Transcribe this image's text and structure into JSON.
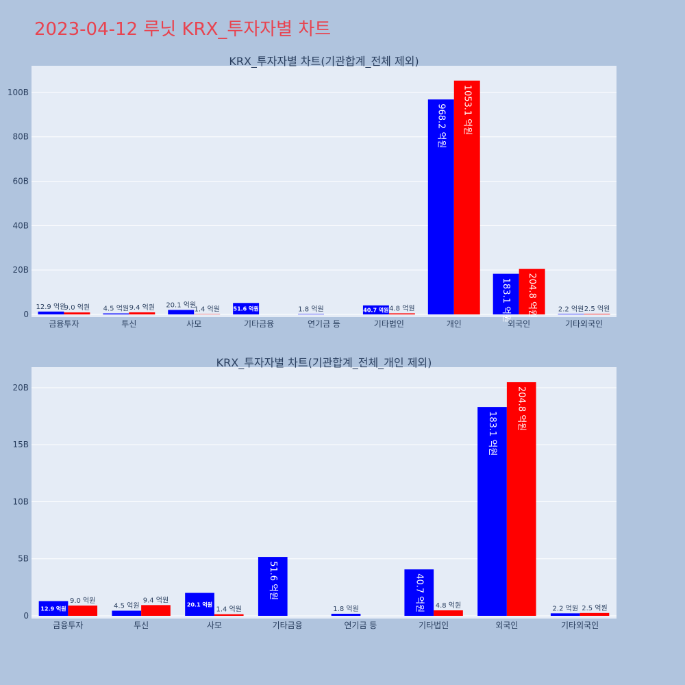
{
  "page": {
    "title": "2023-04-12 루닛 KRX_투자자별 차트"
  },
  "colors": {
    "background": "#b0c4de",
    "plot_bg": "#e5ecf6",
    "title": "#e8434f",
    "series_blue": "#0000ff",
    "series_red": "#ff0000",
    "text": "#2a3f5f"
  },
  "chart_data": [
    {
      "type": "bar",
      "title": "KRX_투자자별 차트(기관합계_전체 제외)",
      "categories": [
        "금융투자",
        "투신",
        "사모",
        "기타금융",
        "연기금 등",
        "기타법인",
        "개인",
        "외국인",
        "기타외국인"
      ],
      "series": [
        {
          "color": "#0000ff",
          "values": [
            1.29,
            0.45,
            2.01,
            5.16,
            0.18,
            4.07,
            96.82,
            18.31,
            0.22
          ],
          "labels": [
            "12.9 억원",
            "4.5 억원",
            "20.1 억원",
            "51.6 억원",
            "1.8 억원",
            "40.7 억원",
            "968.2 억원",
            "183.1 억원",
            "2.2 억원"
          ]
        },
        {
          "color": "#ff0000",
          "values": [
            0.9,
            0.94,
            0.14,
            0,
            0,
            0.48,
            105.31,
            20.48,
            0.25
          ],
          "labels": [
            "9.0 억원",
            "9.4 억원",
            "1.4 억원",
            "",
            "",
            "4.8 억원",
            "1053.1 억원",
            "204.8 억원",
            "2.5 억원"
          ]
        }
      ],
      "ylim": [
        0,
        112
      ],
      "yticks": [
        0,
        20,
        40,
        60,
        80,
        100
      ],
      "ytick_labels": [
        "0",
        "20B",
        "40B",
        "60B",
        "80B",
        "100B"
      ],
      "grid": true
    },
    {
      "type": "bar",
      "title": "KRX_투자자별 차트(기관합계_전체_개인 제외)",
      "categories": [
        "금융투자",
        "투신",
        "사모",
        "기타금융",
        "연기금 등",
        "기타법인",
        "외국인",
        "기타외국인"
      ],
      "series": [
        {
          "color": "#0000ff",
          "values": [
            1.29,
            0.45,
            2.01,
            5.16,
            0.18,
            4.07,
            18.31,
            0.22
          ],
          "labels": [
            "12.9 억원",
            "4.5 억원",
            "20.1 억원",
            "51.6 억원",
            "1.8 억원",
            "40.7 억원",
            "183.1 억원",
            "2.2 억원"
          ]
        },
        {
          "color": "#ff0000",
          "values": [
            0.9,
            0.94,
            0.14,
            0,
            0,
            0.48,
            20.48,
            0.25
          ],
          "labels": [
            "9.0 억원",
            "9.4 억원",
            "1.4 억원",
            "",
            "",
            "4.8 억원",
            "204.8 억원",
            "2.5 억원"
          ]
        }
      ],
      "ylim": [
        0,
        21.8
      ],
      "yticks": [
        0,
        5,
        10,
        15,
        20
      ],
      "ytick_labels": [
        "0",
        "5B",
        "10B",
        "15B",
        "20B"
      ],
      "grid": true
    }
  ]
}
